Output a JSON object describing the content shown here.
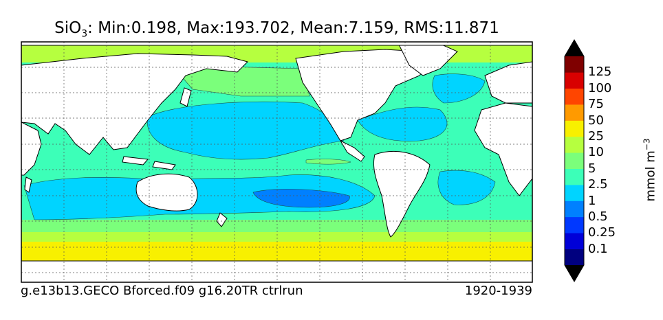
{
  "title": {
    "species_main": "SiO",
    "species_sub": "3",
    "stats": ": Min:0.198, Max:193.702, Mean:7.159, RMS:11.871"
  },
  "footer": {
    "run_name": "g.e13b13.GECO Bforced.f09 g16.20TR ctrlrun",
    "period": "1920-1939"
  },
  "colorbar": {
    "unit_main": "mmol m",
    "unit_exp": "−3",
    "tick_labels": [
      "0.1",
      "0.25",
      "0.5",
      "1",
      "2.5",
      "5",
      "10",
      "25",
      "50",
      "75",
      "100",
      "125"
    ],
    "band_colors": [
      "#00007f",
      "#0000d8",
      "#0038ff",
      "#0080ff",
      "#00d4ff",
      "#3cffb8",
      "#7bff7b",
      "#b6ff3f",
      "#f8f000",
      "#ff9a00",
      "#ff4500",
      "#d80000",
      "#7f0000"
    ],
    "extend": "both"
  },
  "map_colors": {
    "land": "#ffffff",
    "coast": "#000000",
    "contour": "#1a4a40",
    "grid": "#555555"
  }
}
